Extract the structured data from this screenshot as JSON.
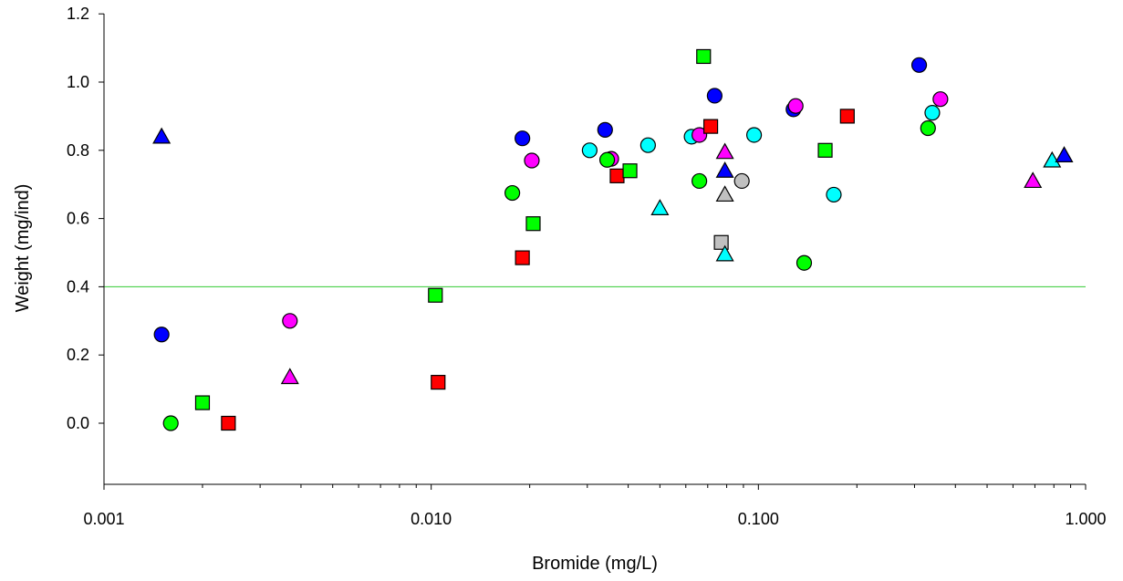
{
  "chart_data": {
    "type": "scatter",
    "title": "",
    "xlabel": "Bromide (mg/L)",
    "ylabel": "Weight (mg/ind)",
    "x_scale": "log",
    "xlim": [
      0.001,
      1.0
    ],
    "ylim": [
      -0.18,
      1.2
    ],
    "x_ticks": [
      0.001,
      0.01,
      0.1,
      1.0
    ],
    "x_tick_labels": [
      "0.001",
      "0.010",
      "0.100",
      "1.000"
    ],
    "y_ticks": [
      0.0,
      0.2,
      0.4,
      0.6,
      0.8,
      1.0,
      1.2
    ],
    "y_tick_labels": [
      "0.0",
      "0.2",
      "0.4",
      "0.6",
      "0.8",
      "1.0",
      "1.2"
    ],
    "grid": false,
    "reference_line": {
      "y": 0.4,
      "color": "#33cc33"
    },
    "points": [
      {
        "x": 0.0015,
        "y": 0.84,
        "marker": "triangle",
        "color": "#0000ff"
      },
      {
        "x": 0.0015,
        "y": 0.26,
        "marker": "circle",
        "color": "#0000ff"
      },
      {
        "x": 0.0016,
        "y": 0.0,
        "marker": "circle",
        "color": "#00ff00"
      },
      {
        "x": 0.002,
        "y": 0.06,
        "marker": "square",
        "color": "#00ff00"
      },
      {
        "x": 0.0024,
        "y": 0.0,
        "marker": "square",
        "color": "#ff0000"
      },
      {
        "x": 0.0037,
        "y": 0.3,
        "marker": "circle",
        "color": "#ff00ff"
      },
      {
        "x": 0.0037,
        "y": 0.135,
        "marker": "triangle",
        "color": "#ff00ff"
      },
      {
        "x": 0.0103,
        "y": 0.375,
        "marker": "square",
        "color": "#00ff00"
      },
      {
        "x": 0.0105,
        "y": 0.12,
        "marker": "square",
        "color": "#ff0000"
      },
      {
        "x": 0.0177,
        "y": 0.675,
        "marker": "circle",
        "color": "#00ff00"
      },
      {
        "x": 0.019,
        "y": 0.835,
        "marker": "circle",
        "color": "#0000ff"
      },
      {
        "x": 0.019,
        "y": 0.485,
        "marker": "square",
        "color": "#ff0000"
      },
      {
        "x": 0.0203,
        "y": 0.77,
        "marker": "circle",
        "color": "#ff00ff"
      },
      {
        "x": 0.0205,
        "y": 0.585,
        "marker": "square",
        "color": "#00ff00"
      },
      {
        "x": 0.0305,
        "y": 0.8,
        "marker": "circle",
        "color": "#00ffff"
      },
      {
        "x": 0.034,
        "y": 0.86,
        "marker": "circle",
        "color": "#0000ff"
      },
      {
        "x": 0.0355,
        "y": 0.775,
        "marker": "circle",
        "color": "#ff00ff"
      },
      {
        "x": 0.0345,
        "y": 0.772,
        "marker": "circle",
        "color": "#00ff00"
      },
      {
        "x": 0.037,
        "y": 0.725,
        "marker": "square",
        "color": "#ff0000"
      },
      {
        "x": 0.0405,
        "y": 0.74,
        "marker": "square",
        "color": "#00ff00"
      },
      {
        "x": 0.046,
        "y": 0.815,
        "marker": "circle",
        "color": "#00ffff"
      },
      {
        "x": 0.05,
        "y": 0.63,
        "marker": "triangle",
        "color": "#00ffff"
      },
      {
        "x": 0.0625,
        "y": 0.84,
        "marker": "circle",
        "color": "#00ffff"
      },
      {
        "x": 0.066,
        "y": 0.845,
        "marker": "circle",
        "color": "#ff00ff"
      },
      {
        "x": 0.066,
        "y": 0.71,
        "marker": "circle",
        "color": "#00ff00"
      },
      {
        "x": 0.068,
        "y": 1.075,
        "marker": "square",
        "color": "#00ff00"
      },
      {
        "x": 0.0715,
        "y": 0.87,
        "marker": "square",
        "color": "#ff0000"
      },
      {
        "x": 0.0735,
        "y": 0.96,
        "marker": "circle",
        "color": "#0000ff"
      },
      {
        "x": 0.077,
        "y": 0.53,
        "marker": "square",
        "color": "#c0c0c0"
      },
      {
        "x": 0.079,
        "y": 0.795,
        "marker": "triangle",
        "color": "#ff00ff"
      },
      {
        "x": 0.079,
        "y": 0.74,
        "marker": "triangle",
        "color": "#0000ff"
      },
      {
        "x": 0.079,
        "y": 0.67,
        "marker": "triangle",
        "color": "#c0c0c0"
      },
      {
        "x": 0.079,
        "y": 0.495,
        "marker": "triangle",
        "color": "#00ffff"
      },
      {
        "x": 0.089,
        "y": 0.71,
        "marker": "circle",
        "color": "#c0c0c0"
      },
      {
        "x": 0.097,
        "y": 0.845,
        "marker": "circle",
        "color": "#00ffff"
      },
      {
        "x": 0.128,
        "y": 0.92,
        "marker": "circle",
        "color": "#0000ff"
      },
      {
        "x": 0.13,
        "y": 0.93,
        "marker": "circle",
        "color": "#ff00ff"
      },
      {
        "x": 0.138,
        "y": 0.47,
        "marker": "circle",
        "color": "#00ff00"
      },
      {
        "x": 0.16,
        "y": 0.8,
        "marker": "square",
        "color": "#00ff00"
      },
      {
        "x": 0.17,
        "y": 0.67,
        "marker": "circle",
        "color": "#00ffff"
      },
      {
        "x": 0.187,
        "y": 0.9,
        "marker": "square",
        "color": "#ff0000"
      },
      {
        "x": 0.31,
        "y": 1.05,
        "marker": "circle",
        "color": "#0000ff"
      },
      {
        "x": 0.33,
        "y": 0.865,
        "marker": "circle",
        "color": "#00ff00"
      },
      {
        "x": 0.34,
        "y": 0.91,
        "marker": "circle",
        "color": "#00ffff"
      },
      {
        "x": 0.36,
        "y": 0.95,
        "marker": "circle",
        "color": "#ff00ff"
      },
      {
        "x": 0.69,
        "y": 0.71,
        "marker": "triangle",
        "color": "#ff00ff"
      },
      {
        "x": 0.79,
        "y": 0.77,
        "marker": "triangle",
        "color": "#00ffff"
      },
      {
        "x": 0.86,
        "y": 0.785,
        "marker": "triangle",
        "color": "#0000ff"
      }
    ]
  }
}
